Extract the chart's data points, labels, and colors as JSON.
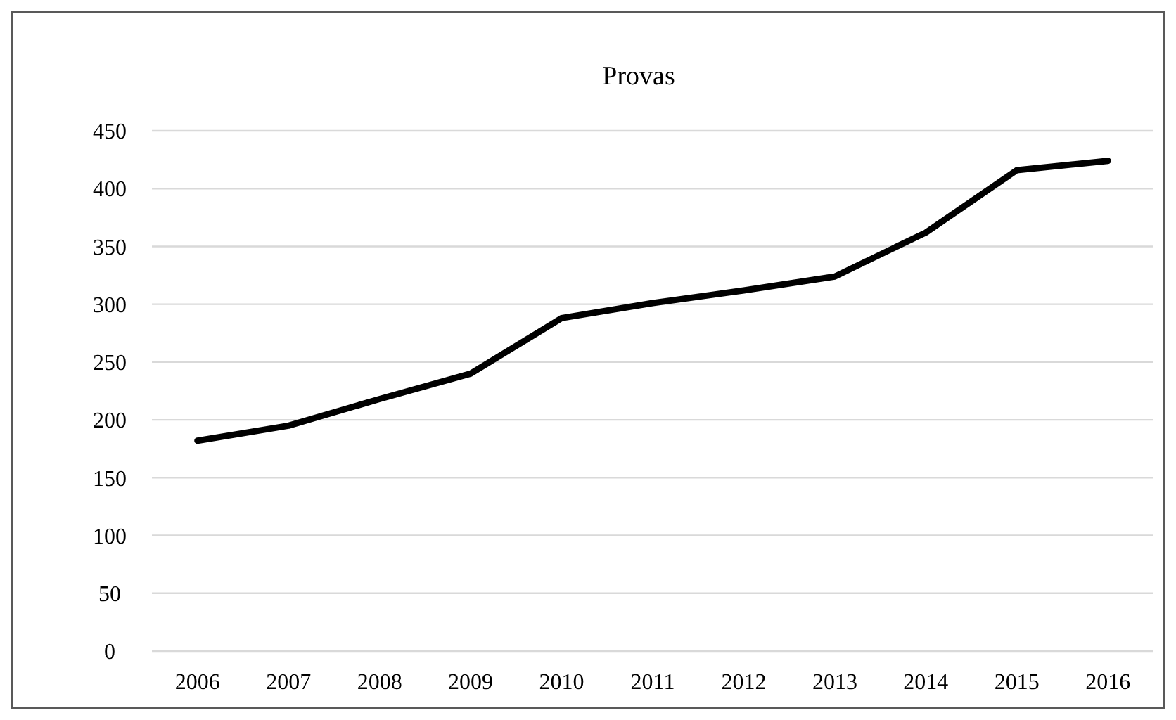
{
  "chart_data": {
    "type": "line",
    "title": "Provas",
    "categories": [
      "2006",
      "2007",
      "2008",
      "2009",
      "2010",
      "2011",
      "2012",
      "2013",
      "2014",
      "2015",
      "2016"
    ],
    "series": [
      {
        "color": "#000000",
        "values": [
          182,
          195,
          218,
          240,
          288,
          301,
          312,
          324,
          362,
          416,
          424
        ]
      }
    ],
    "ylim": [
      0,
      450
    ],
    "yticks": [
      0,
      50,
      100,
      150,
      200,
      250,
      300,
      350,
      400,
      450
    ],
    "grid": "y",
    "marker": "none",
    "line_style": "solid"
  }
}
